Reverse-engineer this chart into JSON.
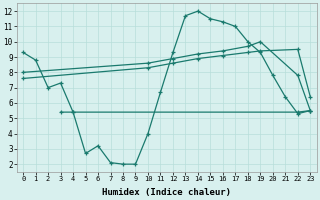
{
  "line1_x": [
    0,
    1,
    2,
    3,
    4,
    5,
    6,
    7,
    8,
    9,
    10,
    11,
    12,
    13,
    14,
    15,
    16,
    17,
    18,
    19,
    20,
    21,
    22,
    23
  ],
  "line1_y": [
    9.3,
    8.8,
    7.0,
    7.3,
    5.4,
    2.7,
    3.2,
    2.1,
    2.0,
    2.0,
    4.0,
    6.7,
    9.3,
    11.7,
    12.0,
    11.5,
    11.3,
    11.0,
    10.0,
    9.3,
    7.8,
    6.4,
    5.3,
    5.5
  ],
  "line2_x": [
    3,
    4,
    22,
    23
  ],
  "line2_y": [
    5.4,
    5.4,
    5.4,
    5.5
  ],
  "line3_x": [
    0,
    10,
    12,
    14,
    16,
    18,
    19,
    22,
    23
  ],
  "line3_y": [
    7.6,
    8.3,
    8.6,
    8.9,
    9.1,
    9.3,
    9.4,
    9.5,
    6.4
  ],
  "line4_x": [
    0,
    10,
    12,
    14,
    16,
    18,
    19,
    22,
    23
  ],
  "line4_y": [
    8.0,
    8.6,
    8.9,
    9.2,
    9.4,
    9.7,
    10.0,
    7.8,
    5.5
  ],
  "xlabel": "Humidex (Indice chaleur)",
  "xlim": [
    -0.5,
    23.5
  ],
  "ylim": [
    1.5,
    12.5
  ],
  "yticks": [
    2,
    3,
    4,
    5,
    6,
    7,
    8,
    9,
    10,
    11,
    12
  ],
  "xticks": [
    0,
    1,
    2,
    3,
    4,
    5,
    6,
    7,
    8,
    9,
    10,
    11,
    12,
    13,
    14,
    15,
    16,
    17,
    18,
    19,
    20,
    21,
    22,
    23
  ],
  "color": "#1a7a6e",
  "bg_color": "#d8f0ee",
  "grid_color": "#b8deda"
}
